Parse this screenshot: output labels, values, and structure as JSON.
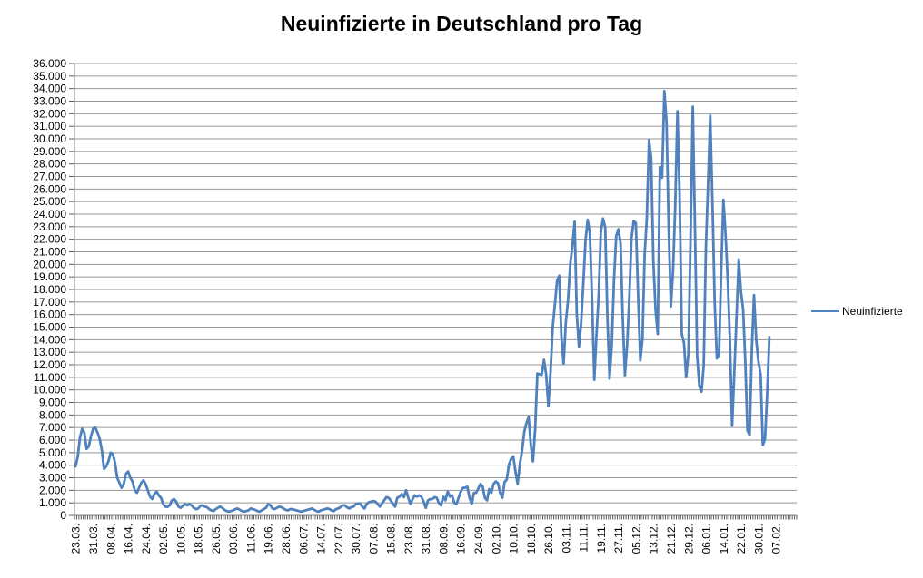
{
  "title": "Neuinfizierte in Deutschland pro Tag",
  "legend": {
    "label": "Neuinfizierte"
  },
  "colors": {
    "series_line": "#4F81BD",
    "gridline": "#969696",
    "axis": "#808080",
    "tick": "#595959",
    "text": "#000000",
    "background": "#FFFFFF"
  },
  "chart_data": {
    "type": "line",
    "title": "Neuinfizierte in Deutschland pro Tag",
    "series": [
      {
        "name": "Neuinfizierte",
        "cadence": "daily",
        "x_start_date": "23.03.2020",
        "x_end_date": "04.02.2021",
        "missing_dates": [
          "21.06.2020"
        ],
        "values": [
          3900,
          4700,
          6200,
          6900,
          6600,
          5300,
          5500,
          6300,
          6900,
          7000,
          6600,
          6100,
          5200,
          3700,
          3900,
          4300,
          5000,
          4900,
          4200,
          3000,
          2600,
          2200,
          2500,
          3300,
          3500,
          3000,
          2700,
          2000,
          1800,
          2200,
          2600,
          2800,
          2500,
          2000,
          1500,
          1300,
          1700,
          1900,
          1600,
          1400,
          900,
          700,
          680,
          800,
          1200,
          1300,
          1100,
          700,
          600,
          750,
          900,
          800,
          900,
          800,
          600,
          500,
          550,
          750,
          800,
          700,
          650,
          500,
          400,
          350,
          500,
          600,
          700,
          600,
          450,
          350,
          300,
          350,
          400,
          500,
          550,
          450,
          350,
          300,
          350,
          400,
          550,
          500,
          450,
          350,
          300,
          400,
          500,
          600,
          900,
          800,
          550,
          500,
          600,
          700,
          650,
          550,
          450,
          400,
          500,
          500,
          450,
          400,
          350,
          300,
          350,
          400,
          450,
          500,
          550,
          450,
          350,
          300,
          400,
          450,
          500,
          550,
          500,
          400,
          350,
          500,
          550,
          650,
          800,
          800,
          650,
          550,
          650,
          700,
          900,
          950,
          950,
          700,
          550,
          900,
          1050,
          1100,
          1150,
          1100,
          900,
          700,
          950,
          1200,
          1450,
          1400,
          1200,
          900,
          700,
          1400,
          1500,
          1700,
          1450,
          2000,
          1400,
          900,
          1300,
          1600,
          1500,
          1600,
          1500,
          1100,
          600,
          1200,
          1300,
          1300,
          1450,
          1400,
          1000,
          800,
          1500,
          1200,
          1900,
          1500,
          1600,
          1000,
          900,
          1400,
          1900,
          2200,
          2200,
          2300,
          1400,
          900,
          1800,
          1800,
          2150,
          2500,
          2300,
          1400,
          1200,
          2100,
          1800,
          2500,
          2700,
          2550,
          1800,
          1400,
          2650,
          2850,
          4050,
          4500,
          4700,
          3500,
          2500,
          4100,
          5150,
          6650,
          7350,
          7850,
          5600,
          4300,
          6900,
          11300,
          11250,
          11200,
          12400,
          11200,
          8700,
          11400,
          15000,
          16800,
          18700,
          19100,
          14200,
          12100,
          15350,
          17200,
          20000,
          21500,
          23400,
          16000,
          13400,
          15350,
          18500,
          21900,
          23550,
          22450,
          16950,
          10800,
          14400,
          17550,
          22600,
          23650,
          22950,
          15750,
          10900,
          13550,
          18650,
          22250,
          22800,
          21700,
          15700,
          11150,
          13600,
          17250,
          22050,
          23450,
          23300,
          17750,
          12350,
          14050,
          20800,
          23700,
          29900,
          28450,
          20200,
          16350,
          14450,
          27750,
          26900,
          33800,
          31300,
          22750,
          16650,
          19550,
          24750,
          32200,
          25550,
          14450,
          13750,
          11000,
          12900,
          22450,
          32550,
          22900,
          12700,
          10300,
          9850,
          11900,
          21250,
          26400,
          31850,
          24700,
          16950,
          12500,
          12800,
          19600,
          25150,
          22350,
          18700,
          13900,
          7150,
          11350,
          15950,
          20400,
          17850,
          16400,
          12250,
          6750,
          6400,
          13200,
          17550,
          14000,
          12300,
          11200,
          5600,
          6100,
          9700,
          14200
        ]
      }
    ],
    "axes": {
      "ylim": [
        0,
        36000
      ],
      "y_tick_step": 1000,
      "y_tick_labels": [
        "0",
        "1.000",
        "2.000",
        "3.000",
        "4.000",
        "5.000",
        "6.000",
        "7.000",
        "8.000",
        "9.000",
        "10.000",
        "11.000",
        "12.000",
        "13.000",
        "14.000",
        "15.000",
        "16.000",
        "17.000",
        "18.000",
        "19.000",
        "20.000",
        "21.000",
        "22.000",
        "23.000",
        "24.000",
        "25.000",
        "26.000",
        "27.000",
        "28.000",
        "29.000",
        "30.000",
        "31.000",
        "32.000",
        "33.000",
        "34.000",
        "35.000",
        "36.000"
      ],
      "x_tick_labels": [
        "23.03.",
        "31.03.",
        "08.04.",
        "16.04.",
        "24.04.",
        "02.05.",
        "10.05.",
        "18.05.",
        "26.05.",
        "03.06.",
        "11.06.",
        "19.06.",
        "28.06.",
        "06.07.",
        "14.07.",
        "22.07.",
        "30.07.",
        "07.08.",
        "15.08.",
        "23.08.",
        "31.08.",
        "08.09.",
        "16.09.",
        "24.09.",
        "02.10.",
        "10.10.",
        "18.10.",
        "26.10.",
        "03.11.",
        "11.11.",
        "19.11.",
        "27.11.",
        "05.12.",
        "13.12.",
        "21.12.",
        "29.12.",
        "06.01.",
        "14.01.",
        "22.01.",
        "30.01.",
        "07.02."
      ],
      "x_tick_every": 8,
      "x_slots": 330,
      "x_label_rotation_deg": -90
    },
    "grid": "horizontal-only",
    "legend_position": "right-middle"
  }
}
